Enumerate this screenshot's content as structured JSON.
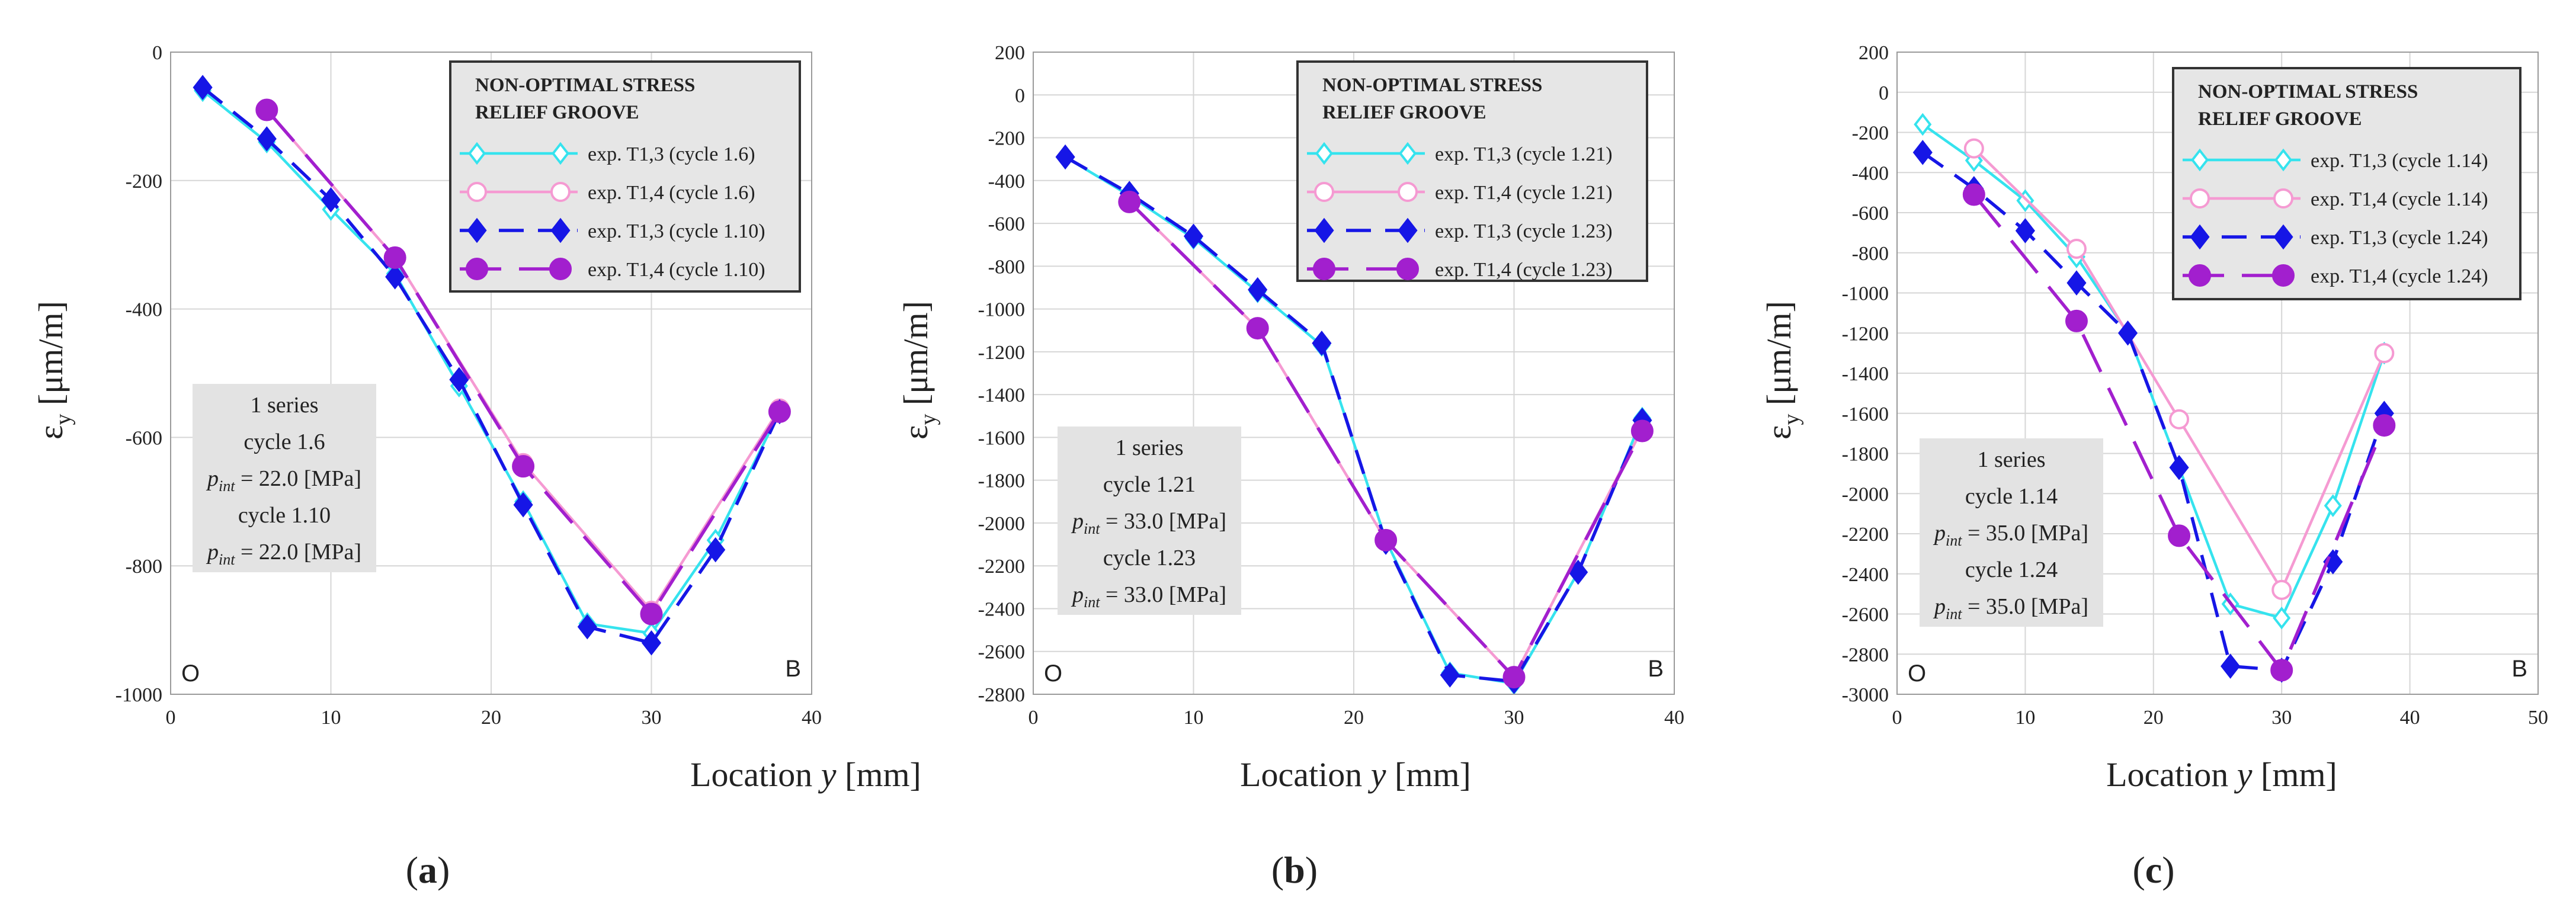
{
  "chart_data": [
    {
      "type": "line",
      "panel_label": "(a)",
      "xlabel_prefix": "Location ",
      "xlabel_var": "y",
      "xlabel_suffix": " [mm]",
      "ylabel_main": "ε",
      "ylabel_sub": "y",
      "ylabel_unit": " [μm/m]",
      "xlim": [
        0,
        40
      ],
      "ylim": [
        -1000,
        0
      ],
      "xticks": [
        0,
        10,
        20,
        30,
        40
      ],
      "yticks": [
        -1000,
        -800,
        -600,
        -400,
        -200,
        0
      ],
      "grid": true,
      "corner_left": "O",
      "corner_right": "B",
      "legend_title": [
        "NON-OPTIMAL STRESS",
        "RELIEF GROOVE"
      ],
      "legend_position": "top-right",
      "info_box": [
        {
          "kind": "text",
          "text": "1 series"
        },
        {
          "kind": "text",
          "text": "cycle 1.6"
        },
        {
          "kind": "p",
          "var": "p",
          "sub": "int",
          "rest": " = 22.0 [MPa]"
        },
        {
          "kind": "text",
          "text": "cycle 1.10"
        },
        {
          "kind": "p",
          "var": "p",
          "sub": "int",
          "rest": " = 22.0 [MPa]"
        }
      ],
      "series": [
        {
          "name": "exp. T1,3 (cycle 1.6)",
          "color": "#35e3ee",
          "dash": "solid",
          "marker": "diamond-open",
          "x": [
            2,
            6,
            10,
            14,
            18,
            22,
            26,
            30,
            34,
            38
          ],
          "y": [
            -60,
            -140,
            -245,
            -345,
            -520,
            -700,
            -890,
            -905,
            -760,
            -560
          ]
        },
        {
          "name": "exp. T1,4 (cycle 1.6)",
          "color": "#f59ad2",
          "dash": "solid",
          "marker": "circle-open",
          "x": [
            6,
            14,
            22,
            30,
            38
          ],
          "y": [
            -90,
            -320,
            -640,
            -870,
            -555
          ]
        },
        {
          "name": "exp. T1,3 (cycle 1.10)",
          "color": "#1616e6",
          "dash": "dash",
          "marker": "diamond-filled",
          "x": [
            2,
            6,
            10,
            14,
            18,
            22,
            26,
            30,
            34,
            38
          ],
          "y": [
            -55,
            -135,
            -230,
            -350,
            -510,
            -705,
            -895,
            -920,
            -775,
            -560
          ]
        },
        {
          "name": "exp. T1,4 (cycle 1.10)",
          "color": "#a21fce",
          "dash": "longdash",
          "marker": "circle-filled",
          "x": [
            6,
            14,
            22,
            30,
            38
          ],
          "y": [
            -90,
            -320,
            -645,
            -875,
            -560
          ]
        }
      ]
    },
    {
      "type": "line",
      "panel_label": "(b)",
      "xlabel_prefix": "Location ",
      "xlabel_var": "y",
      "xlabel_suffix": " [mm]",
      "ylabel_main": "ε",
      "ylabel_sub": "y",
      "ylabel_unit": " [μm/m]",
      "xlim": [
        0,
        40
      ],
      "ylim": [
        -2800,
        200
      ],
      "xticks": [
        0,
        10,
        20,
        30,
        40
      ],
      "yticks": [
        -2800,
        -2600,
        -2400,
        -2200,
        -2000,
        -1800,
        -1600,
        -1400,
        -1200,
        -1000,
        -800,
        -600,
        -400,
        -200,
        0,
        200
      ],
      "grid": true,
      "corner_left": "O",
      "corner_right": "B",
      "legend_title": [
        "NON-OPTIMAL STRESS",
        "RELIEF GROOVE"
      ],
      "legend_position": "top-right",
      "info_box": [
        {
          "kind": "text",
          "text": "1 series"
        },
        {
          "kind": "text",
          "text": "cycle 1.21"
        },
        {
          "kind": "p",
          "var": "p",
          "sub": "int",
          "rest": " = 33.0 [MPa]"
        },
        {
          "kind": "text",
          "text": "cycle 1.23"
        },
        {
          "kind": "p",
          "var": "p",
          "sub": "int",
          "rest": " = 33.0 [MPa]"
        }
      ],
      "series": [
        {
          "name": "exp. T1,3 (cycle 1.21)",
          "color": "#35e3ee",
          "dash": "solid",
          "marker": "diamond-open",
          "x": [
            2,
            6,
            10,
            14,
            18,
            22,
            26,
            30,
            34,
            38
          ],
          "y": [
            -290,
            -470,
            -670,
            -920,
            -1170,
            -2080,
            -2700,
            -2750,
            -2230,
            -1510
          ]
        },
        {
          "name": "exp. T1,4 (cycle 1.21)",
          "color": "#f59ad2",
          "dash": "solid",
          "marker": "circle-open",
          "x": [
            6,
            14,
            22,
            30,
            38
          ],
          "y": [
            -500,
            -1090,
            -2080,
            -2720,
            -1560
          ]
        },
        {
          "name": "exp. T1,3 (cycle 1.23)",
          "color": "#1616e6",
          "dash": "dash",
          "marker": "diamond-filled",
          "x": [
            2,
            6,
            10,
            14,
            18,
            22,
            26,
            30,
            34,
            38
          ],
          "y": [
            -290,
            -460,
            -660,
            -910,
            -1160,
            -2090,
            -2710,
            -2740,
            -2230,
            -1520
          ]
        },
        {
          "name": "exp. T1,4 (cycle 1.23)",
          "color": "#a21fce",
          "dash": "longdash",
          "marker": "circle-filled",
          "x": [
            6,
            14,
            22,
            30,
            38
          ],
          "y": [
            -500,
            -1090,
            -2080,
            -2720,
            -1570
          ]
        }
      ]
    },
    {
      "type": "line",
      "panel_label": "(c)",
      "xlabel_prefix": "Location ",
      "xlabel_var": "y",
      "xlabel_suffix": " [mm]",
      "ylabel_main": "ε",
      "ylabel_sub": "y",
      "ylabel_unit": " [μm/m]",
      "xlim": [
        0,
        50
      ],
      "ylim": [
        -3000,
        200
      ],
      "xticks": [
        0,
        10,
        20,
        30,
        40,
        50
      ],
      "yticks": [
        -3000,
        -2800,
        -2600,
        -2400,
        -2200,
        -2000,
        -1800,
        -1600,
        -1400,
        -1200,
        -1000,
        -800,
        -600,
        -400,
        -200,
        0,
        200
      ],
      "grid": true,
      "corner_left": "O",
      "corner_right": "B",
      "legend_title": [
        "NON-OPTIMAL STRESS",
        "RELIEF GROOVE"
      ],
      "legend_position": "top-right",
      "info_box": [
        {
          "kind": "text",
          "text": "1 series"
        },
        {
          "kind": "text",
          "text": "cycle 1.14"
        },
        {
          "kind": "p",
          "var": "p",
          "sub": "int",
          "rest": " = 35.0 [MPa]"
        },
        {
          "kind": "text",
          "text": "cycle 1.24"
        },
        {
          "kind": "p",
          "var": "p",
          "sub": "int",
          "rest": " = 35.0 [MPa]"
        }
      ],
      "series": [
        {
          "name": "exp. T1,3 (cycle 1.14)",
          "color": "#35e3ee",
          "dash": "solid",
          "marker": "diamond-open",
          "x": [
            2,
            6,
            10,
            14,
            18,
            22,
            26,
            30,
            34,
            38
          ],
          "y": [
            -160,
            -340,
            -540,
            -820,
            -1200,
            -1870,
            -2550,
            -2620,
            -2060,
            -1300
          ]
        },
        {
          "name": "exp. T1,4 (cycle 1.14)",
          "color": "#f59ad2",
          "dash": "solid",
          "marker": "circle-open",
          "x": [
            6,
            14,
            22,
            30,
            38
          ],
          "y": [
            -280,
            -780,
            -1630,
            -2480,
            -1300
          ]
        },
        {
          "name": "exp. T1,3 (cycle 1.24)",
          "color": "#1616e6",
          "dash": "dash",
          "marker": "diamond-filled",
          "x": [
            2,
            6,
            10,
            14,
            18,
            22,
            26,
            30,
            34,
            38
          ],
          "y": [
            -300,
            -480,
            -690,
            -950,
            -1200,
            -1870,
            -2860,
            -2880,
            -2340,
            -1600
          ]
        },
        {
          "name": "exp. T1,4 (cycle 1.24)",
          "color": "#a21fce",
          "dash": "longdash",
          "marker": "circle-filled",
          "x": [
            6,
            14,
            22,
            30,
            38
          ],
          "y": [
            -510,
            -1140,
            -2210,
            -2880,
            -1660
          ]
        }
      ]
    }
  ]
}
